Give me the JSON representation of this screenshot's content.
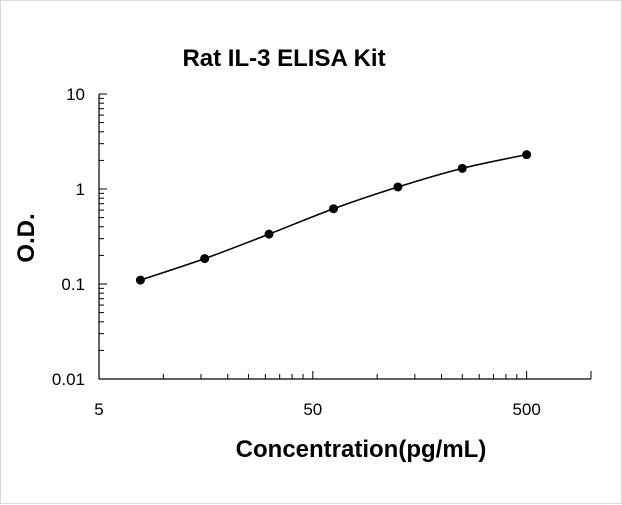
{
  "chart_data": {
    "type": "scatter",
    "title": "Rat IL-3 ELISA Kit",
    "xlabel": "Concentration(pg/mL)",
    "ylabel": "O.D.",
    "x_scale": "log",
    "y_scale": "log",
    "xlim": [
      5,
      1000
    ],
    "ylim": [
      0.01,
      10
    ],
    "x_ticks": [
      "5",
      "50",
      "500"
    ],
    "y_ticks": [
      "10",
      "1",
      "0.1",
      "0.01"
    ],
    "grid": false,
    "legend": "none",
    "marker_color": "#000000",
    "line_color": "#000000",
    "series": [
      {
        "x": [
          7.81,
          15.6,
          31.2,
          62.5,
          125,
          250,
          500
        ],
        "y": [
          0.11,
          0.185,
          0.335,
          0.62,
          1.05,
          1.65,
          2.3
        ]
      }
    ]
  }
}
